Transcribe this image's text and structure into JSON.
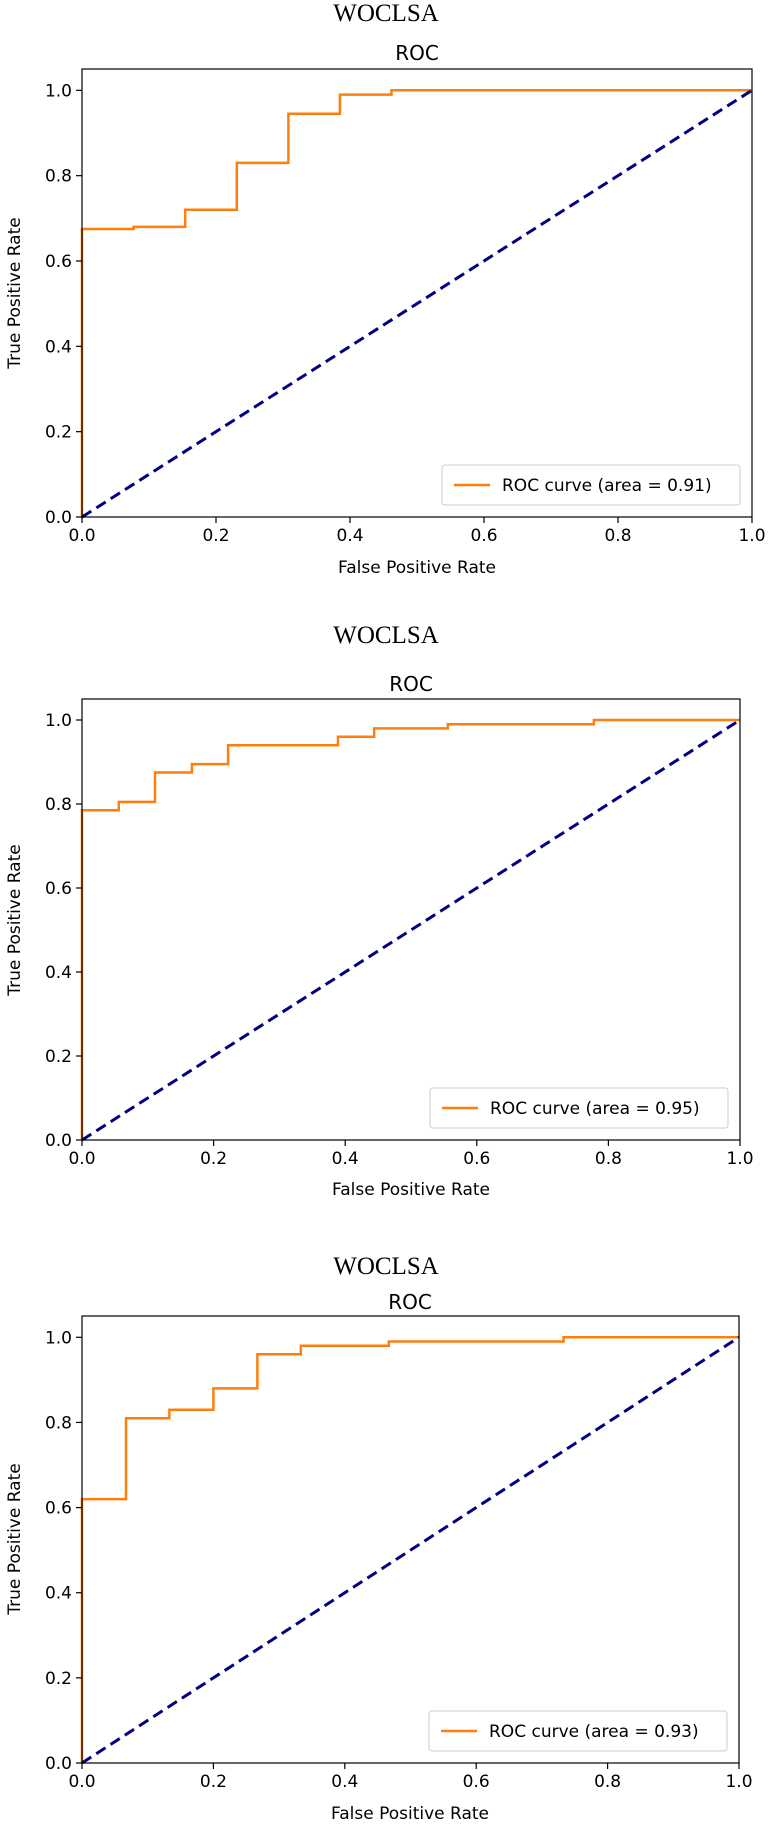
{
  "chart_data": [
    {
      "type": "line",
      "figure_title": "WOCLSA",
      "title": "ROC",
      "xlabel": "False Positive Rate",
      "ylabel": "True Positive Rate",
      "xlim": [
        0,
        1
      ],
      "ylim": [
        0,
        1.05
      ],
      "x_ticks": [
        "0.0",
        "0.2",
        "0.4",
        "0.6",
        "0.8",
        "1.0"
      ],
      "y_ticks": [
        "0.0",
        "0.2",
        "0.4",
        "0.6",
        "0.8",
        "1.0"
      ],
      "grid": false,
      "legend_position": "lower-right",
      "series": [
        {
          "name": "ROC curve (area = 0.91)",
          "color": "#ff7f0e",
          "style": "solid",
          "x": [
            0,
            0,
            0.077,
            0.077,
            0.154,
            0.154,
            0.231,
            0.231,
            0.308,
            0.308,
            0.385,
            0.385,
            0.462,
            0.462,
            1.0
          ],
          "y": [
            0,
            0.675,
            0.675,
            0.68,
            0.68,
            0.72,
            0.72,
            0.83,
            0.83,
            0.945,
            0.945,
            0.99,
            0.99,
            1.0,
            1.0
          ]
        },
        {
          "name": "",
          "color": "#000080",
          "style": "dashed",
          "x": [
            0,
            1
          ],
          "y": [
            0,
            1
          ]
        }
      ]
    },
    {
      "type": "line",
      "figure_title": "WOCLSA",
      "title": "ROC",
      "xlabel": "False Positive Rate",
      "ylabel": "True Positive Rate",
      "xlim": [
        0,
        1
      ],
      "ylim": [
        0,
        1.05
      ],
      "x_ticks": [
        "0.0",
        "0.2",
        "0.4",
        "0.6",
        "0.8",
        "1.0"
      ],
      "y_ticks": [
        "0.0",
        "0.2",
        "0.4",
        "0.6",
        "0.8",
        "1.0"
      ],
      "grid": false,
      "legend_position": "lower-right",
      "series": [
        {
          "name": "ROC curve (area = 0.95)",
          "color": "#ff7f0e",
          "style": "solid",
          "x": [
            0,
            0,
            0.056,
            0.056,
            0.111,
            0.111,
            0.167,
            0.167,
            0.222,
            0.222,
            0.389,
            0.389,
            0.444,
            0.444,
            0.556,
            0.556,
            0.778,
            0.778,
            1.0
          ],
          "y": [
            0,
            0.785,
            0.785,
            0.805,
            0.805,
            0.875,
            0.875,
            0.895,
            0.895,
            0.94,
            0.94,
            0.96,
            0.96,
            0.98,
            0.98,
            0.99,
            0.99,
            1.0,
            1.0
          ]
        },
        {
          "name": "",
          "color": "#000080",
          "style": "dashed",
          "x": [
            0,
            1
          ],
          "y": [
            0,
            1
          ]
        }
      ]
    },
    {
      "type": "line",
      "figure_title": "WOCLSA",
      "title": "ROC",
      "xlabel": "False Positive Rate",
      "ylabel": "True Positive Rate",
      "xlim": [
        0,
        1
      ],
      "ylim": [
        0,
        1.05
      ],
      "x_ticks": [
        "0.0",
        "0.2",
        "0.4",
        "0.6",
        "0.8",
        "1.0"
      ],
      "y_ticks": [
        "0.0",
        "0.2",
        "0.4",
        "0.6",
        "0.8",
        "1.0"
      ],
      "grid": false,
      "legend_position": "lower-right",
      "series": [
        {
          "name": "ROC curve (area = 0.93)",
          "color": "#ff7f0e",
          "style": "solid",
          "x": [
            0,
            0,
            0.067,
            0.067,
            0.133,
            0.133,
            0.2,
            0.2,
            0.267,
            0.267,
            0.333,
            0.333,
            0.467,
            0.467,
            0.733,
            0.733,
            1.0
          ],
          "y": [
            0,
            0.62,
            0.62,
            0.81,
            0.81,
            0.83,
            0.83,
            0.88,
            0.88,
            0.96,
            0.96,
            0.98,
            0.98,
            0.99,
            0.99,
            1.0,
            1.0
          ]
        },
        {
          "name": "",
          "color": "#000080",
          "style": "dashed",
          "x": [
            0,
            1
          ],
          "y": [
            0,
            1
          ]
        }
      ]
    }
  ]
}
